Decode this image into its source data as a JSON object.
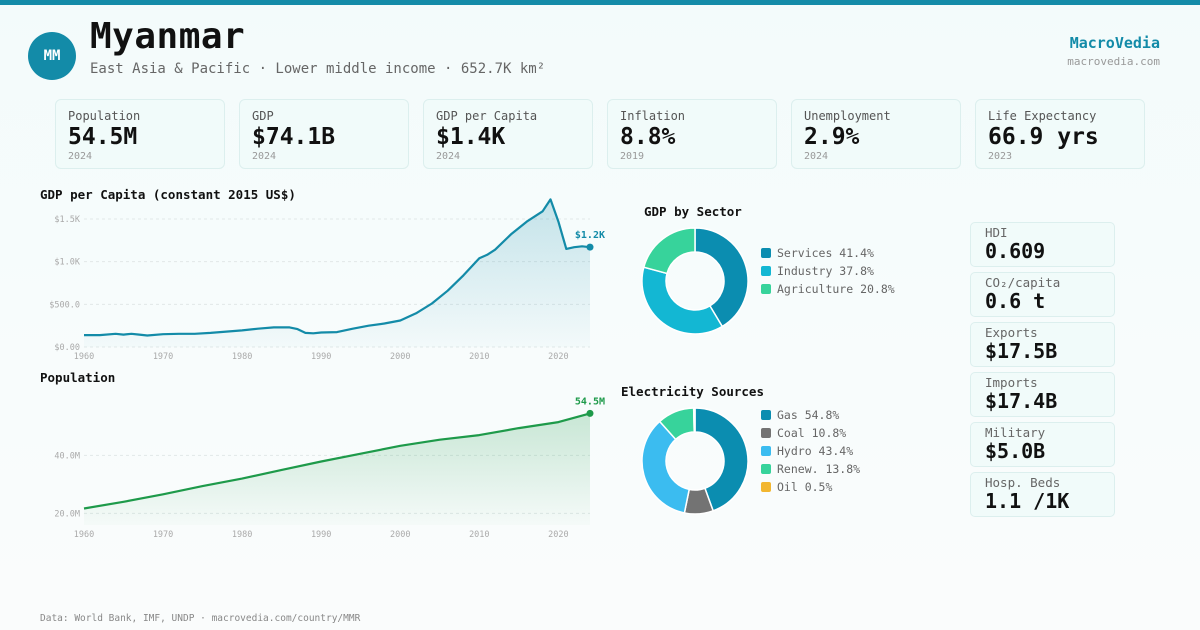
{
  "header": {
    "avatar": "MM",
    "title": "Myanmar",
    "subtitle": "East Asia & Pacific · Lower middle income · 652.7K km²",
    "brand": "MacroVedia",
    "brand_url": "macrovedia.com"
  },
  "stats": [
    {
      "label": "Population",
      "value": "54.5M",
      "year": "2024"
    },
    {
      "label": "GDP",
      "value": "$74.1B",
      "year": "2024"
    },
    {
      "label": "GDP per Capita",
      "value": "$1.4K",
      "year": "2024"
    },
    {
      "label": "Inflation",
      "value": "8.8%",
      "year": "2019"
    },
    {
      "label": "Unemployment",
      "value": "2.9%",
      "year": "2024"
    },
    {
      "label": "Life Expectancy",
      "value": "66.9 yrs",
      "year": "2023"
    }
  ],
  "side_stats": [
    {
      "label": "HDI",
      "value": "0.609"
    },
    {
      "label": "CO₂/capita",
      "value": "0.6 t"
    },
    {
      "label": "Exports",
      "value": "$17.5B"
    },
    {
      "label": "Imports",
      "value": "$17.4B"
    },
    {
      "label": "Military",
      "value": "$5.0B"
    },
    {
      "label": "Hosp. Beds",
      "value": "1.1 /1K"
    }
  ],
  "footer": "Data: World Bank, IMF, UNDP · macrovedia.com/country/MMR",
  "colors": {
    "accent": "#138ba8",
    "gdp_line": "#138ba8",
    "pop_line": "#1e9a4a"
  },
  "chart_data": [
    {
      "type": "area",
      "title": "GDP per Capita (constant 2015 US$)",
      "end_label": "$1.2K",
      "ylim": [
        0,
        1500
      ],
      "y_ticks": [
        0,
        500,
        1000,
        1500
      ],
      "y_tick_labels": [
        "$0.00",
        "$500.0",
        "$1.0K",
        "$1.5K"
      ],
      "x_ticks": [
        1960,
        1970,
        1980,
        1990,
        2000,
        2010,
        2020
      ],
      "x_tick_labels": [
        "1960",
        "1970",
        "1980",
        "1990",
        "2000",
        "2010",
        "2020"
      ],
      "xlim": [
        1960,
        2024
      ],
      "grid": true,
      "x": [
        1960,
        1962,
        1964,
        1965,
        1966,
        1967,
        1968,
        1970,
        1972,
        1974,
        1976,
        1978,
        1980,
        1982,
        1984,
        1986,
        1987,
        1988,
        1989,
        1990,
        1992,
        1994,
        1996,
        1998,
        2000,
        2002,
        2004,
        2006,
        2008,
        2010,
        2011,
        2012,
        2014,
        2016,
        2018,
        2019,
        2020,
        2021,
        2022,
        2023,
        2024
      ],
      "values": [
        140,
        140,
        155,
        145,
        155,
        145,
        135,
        150,
        155,
        155,
        165,
        180,
        195,
        215,
        230,
        230,
        210,
        165,
        160,
        170,
        175,
        215,
        250,
        275,
        310,
        395,
        510,
        660,
        840,
        1040,
        1080,
        1140,
        1320,
        1470,
        1590,
        1730,
        1470,
        1150,
        1170,
        1180,
        1170
      ]
    },
    {
      "type": "area",
      "title": "Population",
      "end_label": "54.5M",
      "ylim": [
        16,
        56
      ],
      "y_ticks": [
        20,
        40
      ],
      "y_tick_labels": [
        "20.0M",
        "40.0M"
      ],
      "x_ticks": [
        1960,
        1970,
        1980,
        1990,
        2000,
        2010,
        2020
      ],
      "x_tick_labels": [
        "1960",
        "1970",
        "1980",
        "1990",
        "2000",
        "2010",
        "2020"
      ],
      "xlim": [
        1960,
        2024
      ],
      "grid": true,
      "x": [
        1960,
        1965,
        1970,
        1975,
        1980,
        1985,
        1990,
        1995,
        2000,
        2005,
        2010,
        2015,
        2020,
        2024
      ],
      "values": [
        21.7,
        24.0,
        26.6,
        29.4,
        32.0,
        35.0,
        37.9,
        40.6,
        43.3,
        45.4,
        47.0,
        49.4,
        51.5,
        54.5
      ]
    },
    {
      "type": "pie",
      "title": "GDP by Sector",
      "donut": true,
      "categories": [
        "Services",
        "Industry",
        "Agriculture"
      ],
      "values": [
        41.4,
        37.8,
        20.8
      ],
      "labels": [
        "Services 41.4%",
        "Industry 37.8%",
        "Agriculture 20.8%"
      ],
      "colors": [
        "#0b8db0",
        "#13b7d3",
        "#37d39b"
      ]
    },
    {
      "type": "pie",
      "title": "Electricity Sources",
      "donut": true,
      "categories": [
        "Gas",
        "Coal",
        "Hydro",
        "Renew.",
        "Oil"
      ],
      "values": [
        54.8,
        10.8,
        43.4,
        13.8,
        0.5
      ],
      "labels": [
        "Gas 54.8%",
        "Coal 10.8%",
        "Hydro 43.4%",
        "Renew. 13.8%",
        "Oil 0.5%"
      ],
      "colors": [
        "#0b8db0",
        "#737373",
        "#3bbcf0",
        "#37d39b",
        "#f2b630"
      ]
    }
  ]
}
